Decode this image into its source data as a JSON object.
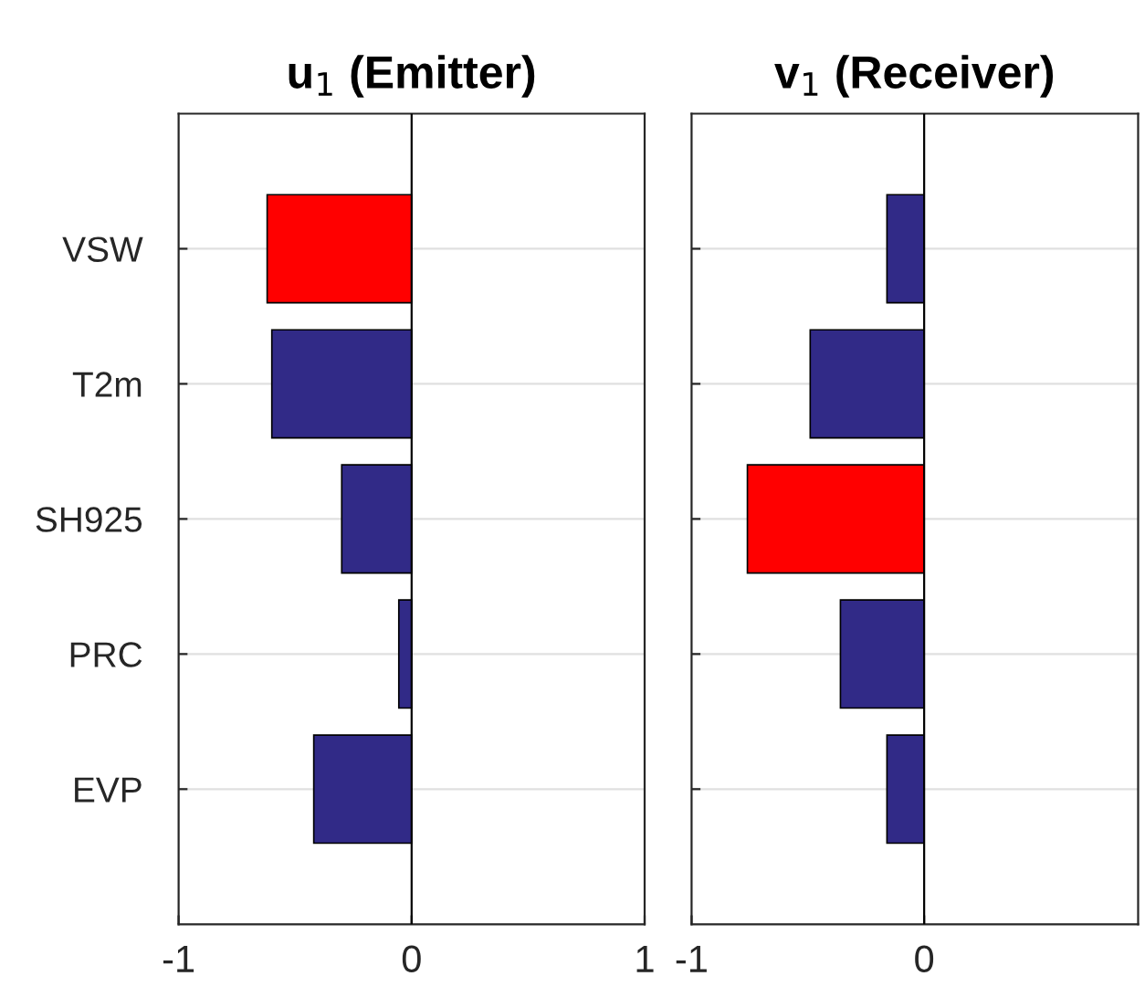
{
  "chart_data": [
    {
      "type": "bar",
      "orientation": "horizontal",
      "title": "u$_{1}$ (Emitter)",
      "categories": [
        "VSW",
        "T2m",
        "SH925",
        "PRC",
        "EVP"
      ],
      "values": [
        -0.62,
        -0.6,
        -0.3,
        -0.055,
        -0.42
      ],
      "colors": [
        "#ff0000",
        "#312a87",
        "#312a87",
        "#312a87",
        "#312a87"
      ],
      "xlim": [
        -1,
        1
      ],
      "xticks": [
        -1,
        0,
        1
      ],
      "grid": "y",
      "ref_lines": [
        {
          "axis": "x",
          "value": 0,
          "color": "#000000"
        }
      ]
    },
    {
      "type": "bar",
      "orientation": "horizontal",
      "title": "v$_{1}$ (Receiver)",
      "categories": [
        null,
        null,
        null,
        null,
        null
      ],
      "values": [
        -0.16,
        -0.49,
        -0.76,
        -0.36,
        -0.16
      ],
      "colors": [
        "#312a87",
        "#312a87",
        "#ff0000",
        "#312a87",
        "#312a87"
      ],
      "xlim": [
        -1,
        0.92
      ],
      "xticks": [
        -1,
        0
      ],
      "grid": "y",
      "tick_labels": "x",
      "ref_lines": [
        {
          "axis": "x",
          "value": 0,
          "color": "#000000"
        }
      ]
    }
  ]
}
